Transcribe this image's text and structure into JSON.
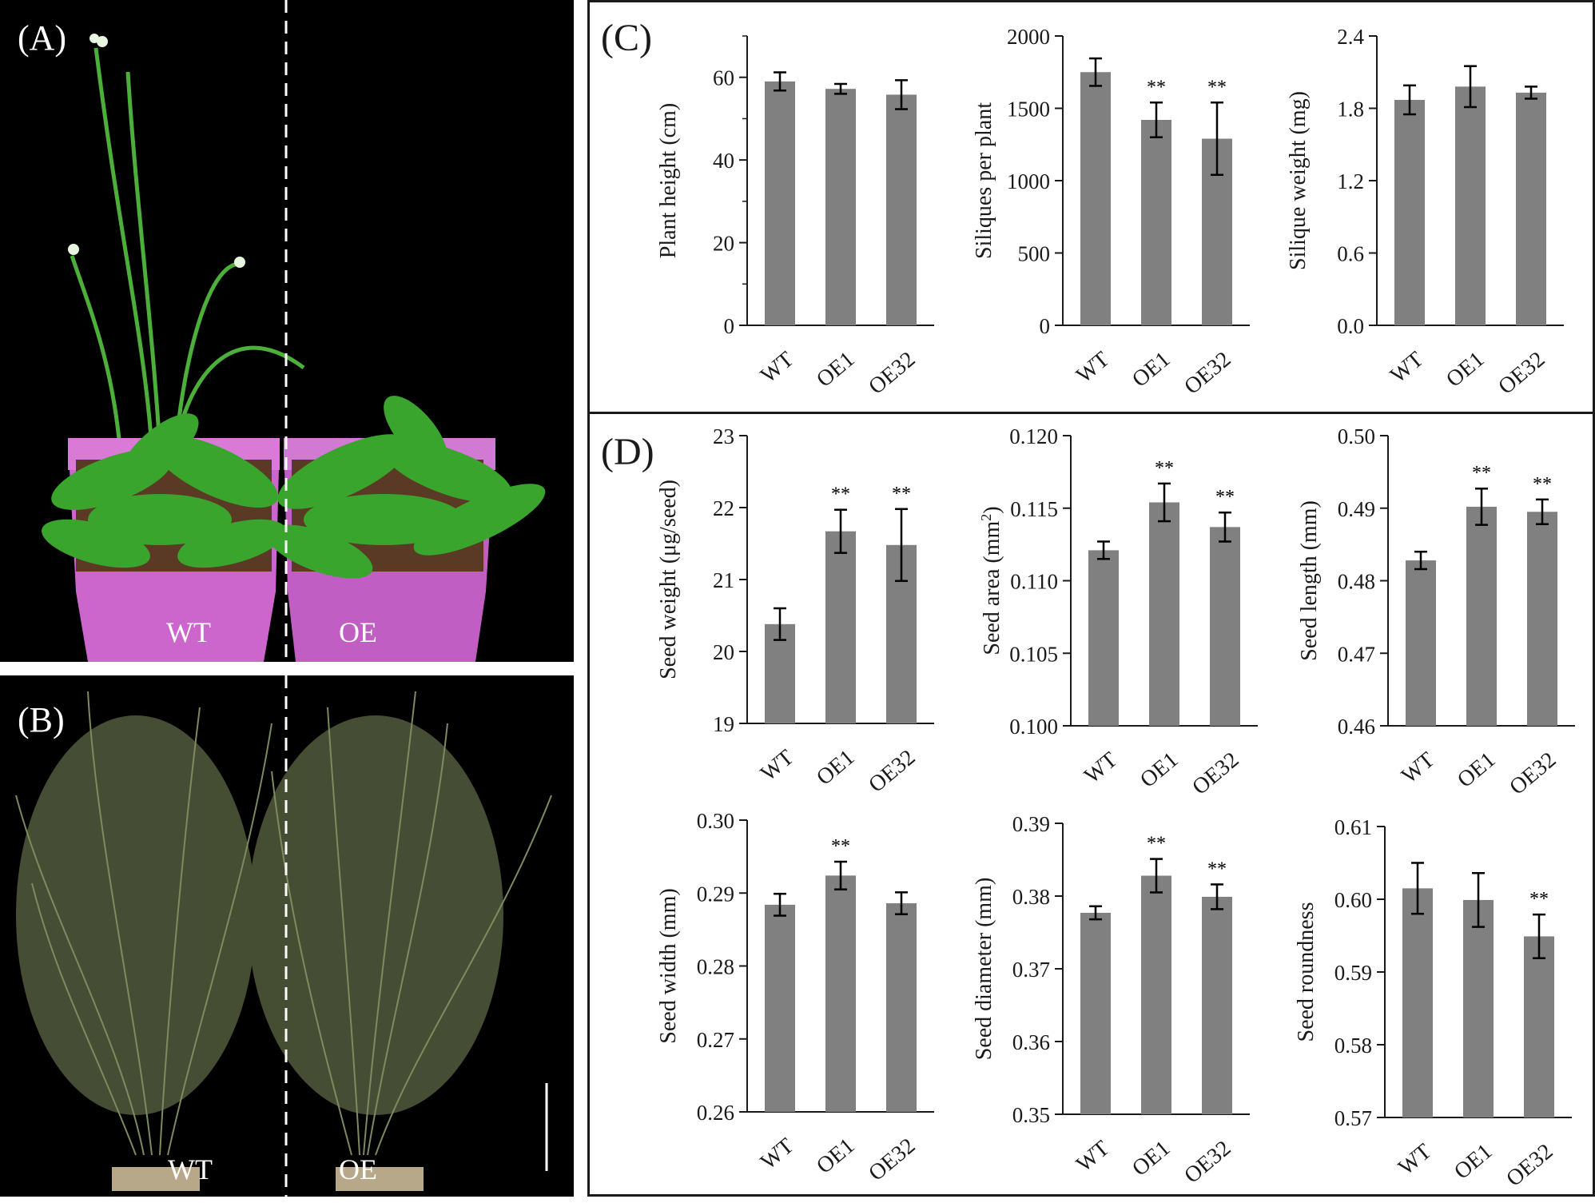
{
  "photos": {
    "A": {
      "label": "(A)",
      "left_text": "WT",
      "right_text": "OE"
    },
    "B": {
      "label": "(B)",
      "left_text": "WT",
      "right_text": "OE"
    }
  },
  "panels": {
    "C": "(C)",
    "D": "(D)"
  },
  "colors": {
    "bar": "#808080",
    "axis": "#1a1a1a",
    "plant": "#3aa52c",
    "pot": "#cc66cc"
  },
  "chart_data": [
    {
      "type": "bar",
      "categories": [
        "WT",
        "OE1",
        "OE32"
      ],
      "values": [
        59,
        57.2,
        55.8
      ],
      "errors": [
        2.2,
        1.2,
        3.5
      ],
      "sig": [
        "",
        "",
        ""
      ],
      "ylabel": "Plant height (cm)",
      "ylim": [
        0,
        70
      ],
      "ticks": [
        0,
        20,
        40,
        60
      ],
      "tick_labels": [
        "0",
        "20",
        "40",
        "60"
      ],
      "minor": [
        10,
        30,
        50,
        70
      ]
    },
    {
      "type": "bar",
      "categories": [
        "WT",
        "OE1",
        "OE32"
      ],
      "values": [
        1750,
        1420,
        1290
      ],
      "errors": [
        95,
        120,
        250
      ],
      "sig": [
        "",
        "**",
        "**"
      ],
      "ylabel": "Siliques per plant",
      "ylim": [
        0,
        2000
      ],
      "ticks": [
        0,
        500,
        1000,
        1500,
        2000
      ],
      "tick_labels": [
        "0",
        "500",
        "1000",
        "1500",
        "2000"
      ],
      "minor": []
    },
    {
      "type": "bar",
      "categories": [
        "WT",
        "OE1",
        "OE32"
      ],
      "values": [
        1.87,
        1.98,
        1.93
      ],
      "errors": [
        0.12,
        0.17,
        0.05
      ],
      "sig": [
        "",
        "",
        ""
      ],
      "ylabel": "Silique weight (mg)",
      "ylim": [
        0,
        2.4
      ],
      "ticks": [
        0,
        0.6,
        1.2,
        1.8,
        2.4
      ],
      "tick_labels": [
        "0.0",
        "0.6",
        "1.2",
        "1.8",
        "2.4"
      ],
      "minor": []
    },
    {
      "type": "bar",
      "categories": [
        "WT",
        "OE1",
        "OE32"
      ],
      "values": [
        20.38,
        21.67,
        21.48
      ],
      "errors": [
        0.22,
        0.3,
        0.5
      ],
      "sig": [
        "",
        "**",
        "**"
      ],
      "ylabel": "Seed weight (μg/seed)",
      "ylim": [
        19,
        23
      ],
      "ticks": [
        19,
        20,
        21,
        22,
        23
      ],
      "tick_labels": [
        "19",
        "20",
        "21",
        "22",
        "23"
      ],
      "minor": []
    },
    {
      "type": "bar",
      "categories": [
        "WT",
        "OE1",
        "OE32"
      ],
      "values": [
        0.1121,
        0.1154,
        0.1137
      ],
      "errors": [
        0.0006,
        0.0013,
        0.001
      ],
      "sig": [
        "",
        "**",
        "**"
      ],
      "ylabel": "Seed area (mm²)",
      "ylim": [
        0.1,
        0.12
      ],
      "ticks": [
        0.1,
        0.105,
        0.11,
        0.115,
        0.12
      ],
      "tick_labels": [
        "0.100",
        "0.105",
        "0.110",
        "0.115",
        "0.120"
      ],
      "minor": []
    },
    {
      "type": "bar",
      "categories": [
        "WT",
        "OE1",
        "OE32"
      ],
      "values": [
        0.4828,
        0.4902,
        0.4895
      ],
      "errors": [
        0.0012,
        0.0025,
        0.0017
      ],
      "sig": [
        "",
        "**",
        "**"
      ],
      "ylabel": "Seed length (mm)",
      "ylim": [
        0.46,
        0.5
      ],
      "ticks": [
        0.46,
        0.47,
        0.48,
        0.49,
        0.5
      ],
      "tick_labels": [
        "0.46",
        "0.47",
        "0.48",
        "0.49",
        "0.50"
      ],
      "minor": []
    },
    {
      "type": "bar",
      "categories": [
        "WT",
        "OE1",
        "OE32"
      ],
      "values": [
        0.2884,
        0.2924,
        0.2886
      ],
      "errors": [
        0.0015,
        0.0019,
        0.0015
      ],
      "sig": [
        "",
        "**",
        ""
      ],
      "ylabel": "Seed width (mm)",
      "ylim": [
        0.26,
        0.3
      ],
      "ticks": [
        0.26,
        0.27,
        0.28,
        0.29,
        0.3
      ],
      "tick_labels": [
        "0.26",
        "0.27",
        "0.28",
        "0.29",
        "0.30"
      ],
      "minor": []
    },
    {
      "type": "bar",
      "categories": [
        "WT",
        "OE1",
        "OE32"
      ],
      "values": [
        0.3777,
        0.3828,
        0.3799
      ],
      "errors": [
        0.0009,
        0.0023,
        0.0017
      ],
      "sig": [
        "",
        "**",
        "**"
      ],
      "ylabel": "Seed diameter (mm)",
      "ylim": [
        0.35,
        0.39
      ],
      "ticks": [
        0.35,
        0.36,
        0.37,
        0.38,
        0.39
      ],
      "tick_labels": [
        "0.35",
        "0.36",
        "0.37",
        "0.38",
        "0.39"
      ],
      "minor": []
    },
    {
      "type": "bar",
      "categories": [
        "WT",
        "OE1",
        "OE32"
      ],
      "values": [
        0.6015,
        0.5999,
        0.5949
      ],
      "errors": [
        0.0035,
        0.0037,
        0.003
      ],
      "sig": [
        "",
        "",
        "**"
      ],
      "ylabel": "Seed roundness",
      "ylim": [
        0.57,
        0.61
      ],
      "ticks": [
        0.57,
        0.58,
        0.59,
        0.6,
        0.61
      ],
      "tick_labels": [
        "0.57",
        "0.58",
        "0.59",
        "0.60",
        "0.61"
      ],
      "minor": []
    }
  ]
}
